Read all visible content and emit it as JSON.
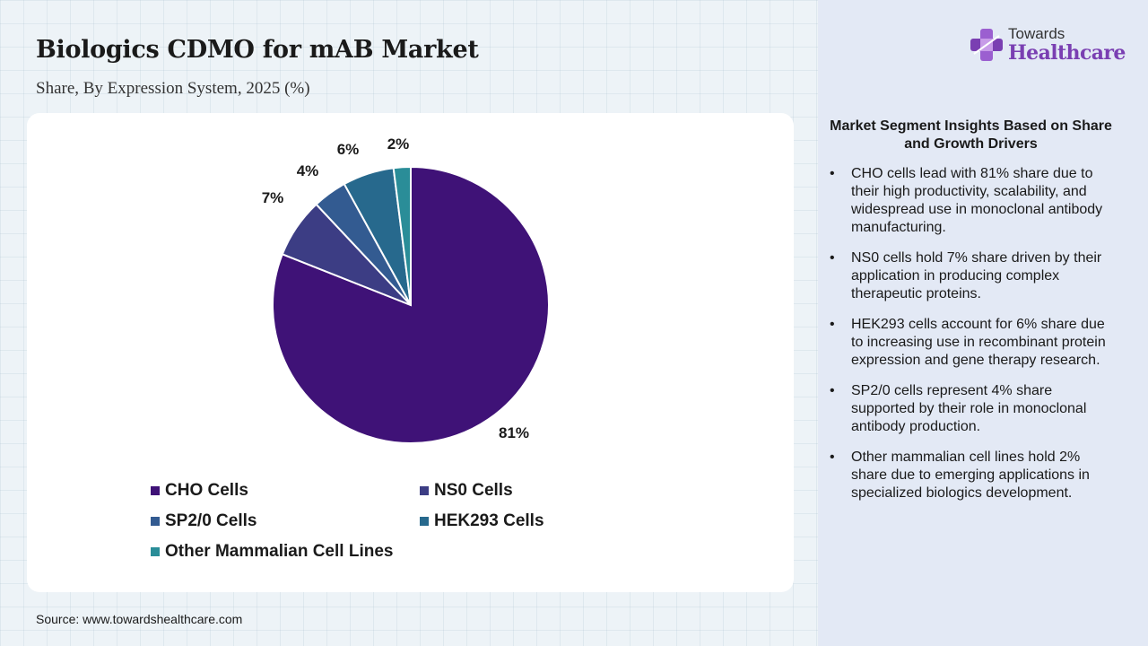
{
  "header": {
    "title": "Biologics CDMO for mAB Market",
    "subtitle": "Share, By Expression System, 2025 (%)"
  },
  "brand": {
    "top": "Towards",
    "main": "Healthcare",
    "icon": "plus-cross-logo-icon"
  },
  "chart_data": {
    "type": "pie",
    "categories": [
      "CHO Cells",
      "NS0 Cells",
      "SP2/0 Cells",
      "HEK293 Cells",
      "Other Mammalian Cell Lines"
    ],
    "values": [
      81,
      7,
      4,
      6,
      2
    ],
    "labels": [
      "81%",
      "7%",
      "4%",
      "6%",
      "2%"
    ],
    "colors": [
      "#3f1277",
      "#3c3d84",
      "#335b91",
      "#27698d",
      "#2a8d98"
    ],
    "legend_position": "bottom"
  },
  "legend": [
    {
      "label": "CHO Cells",
      "color": "#3f1277"
    },
    {
      "label": "NS0 Cells",
      "color": "#3c3d84"
    },
    {
      "label": "SP2/0 Cells",
      "color": "#335b91"
    },
    {
      "label": "HEK293 Cells",
      "color": "#27698d"
    },
    {
      "label": "Other Mammalian Cell Lines",
      "color": "#2a8d98"
    }
  ],
  "insights": {
    "title": "Market Segment Insights Based on Share and Growth Drivers",
    "items": [
      "CHO cells lead with 81% share due to their high productivity, scalability, and widespread use in monoclonal antibody manufacturing.",
      "NS0 cells hold 7% share driven by their application in producing complex therapeutic proteins.",
      "HEK293 cells account for 6% share due to increasing use in recombinant protein expression and gene therapy research.",
      "SP2/0 cells represent 4% share supported by their role in monoclonal antibody production.",
      "Other mammalian cell lines hold 2% share due to emerging applications in specialized biologics development."
    ]
  },
  "source": "Source: www.towardshealthcare.com"
}
